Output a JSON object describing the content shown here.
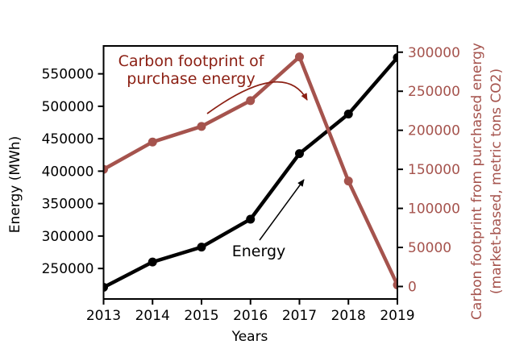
{
  "figure": {
    "background": "#ffffff"
  },
  "chart_data": {
    "type": "line",
    "title": "",
    "grid": false,
    "legend": "none",
    "categories": [
      "2013",
      "2014",
      "2015",
      "2016",
      "2017",
      "2018",
      "2019"
    ],
    "series": [
      {
        "name": "Energy",
        "axis": "left",
        "color": "#000000",
        "marker": "circle",
        "values": [
          221000,
          260000,
          283000,
          326000,
          427000,
          488000,
          575000
        ]
      },
      {
        "name": "Carbon footprint of purchase energy",
        "axis": "right",
        "color": "#a5534d",
        "marker": "circle",
        "values": [
          150000,
          185000,
          205000,
          238000,
          294000,
          135000,
          2000
        ]
      }
    ],
    "x_axis": {
      "label": "Years",
      "color": "#000000"
    },
    "left_axis": {
      "label": "Energy (MWh)",
      "ticks": [
        250000,
        300000,
        350000,
        400000,
        450000,
        500000,
        550000
      ],
      "range": [
        203000,
        593000
      ],
      "color": "#000000"
    },
    "right_axis": {
      "label_line1": "Carbon footprint from purchased energy",
      "label_line2": "(market-based, metric tons CO2)",
      "ticks": [
        0,
        50000,
        100000,
        150000,
        200000,
        250000,
        300000
      ],
      "range": [
        -16000,
        308000
      ],
      "color": "#a5534d"
    },
    "annotations": [
      {
        "id": "carbon-annotation",
        "line1": "Carbon footprint of",
        "line2": "purchase energy",
        "color": "#8c2014"
      },
      {
        "id": "energy-annotation",
        "text": "Energy",
        "color": "#000000"
      }
    ]
  }
}
